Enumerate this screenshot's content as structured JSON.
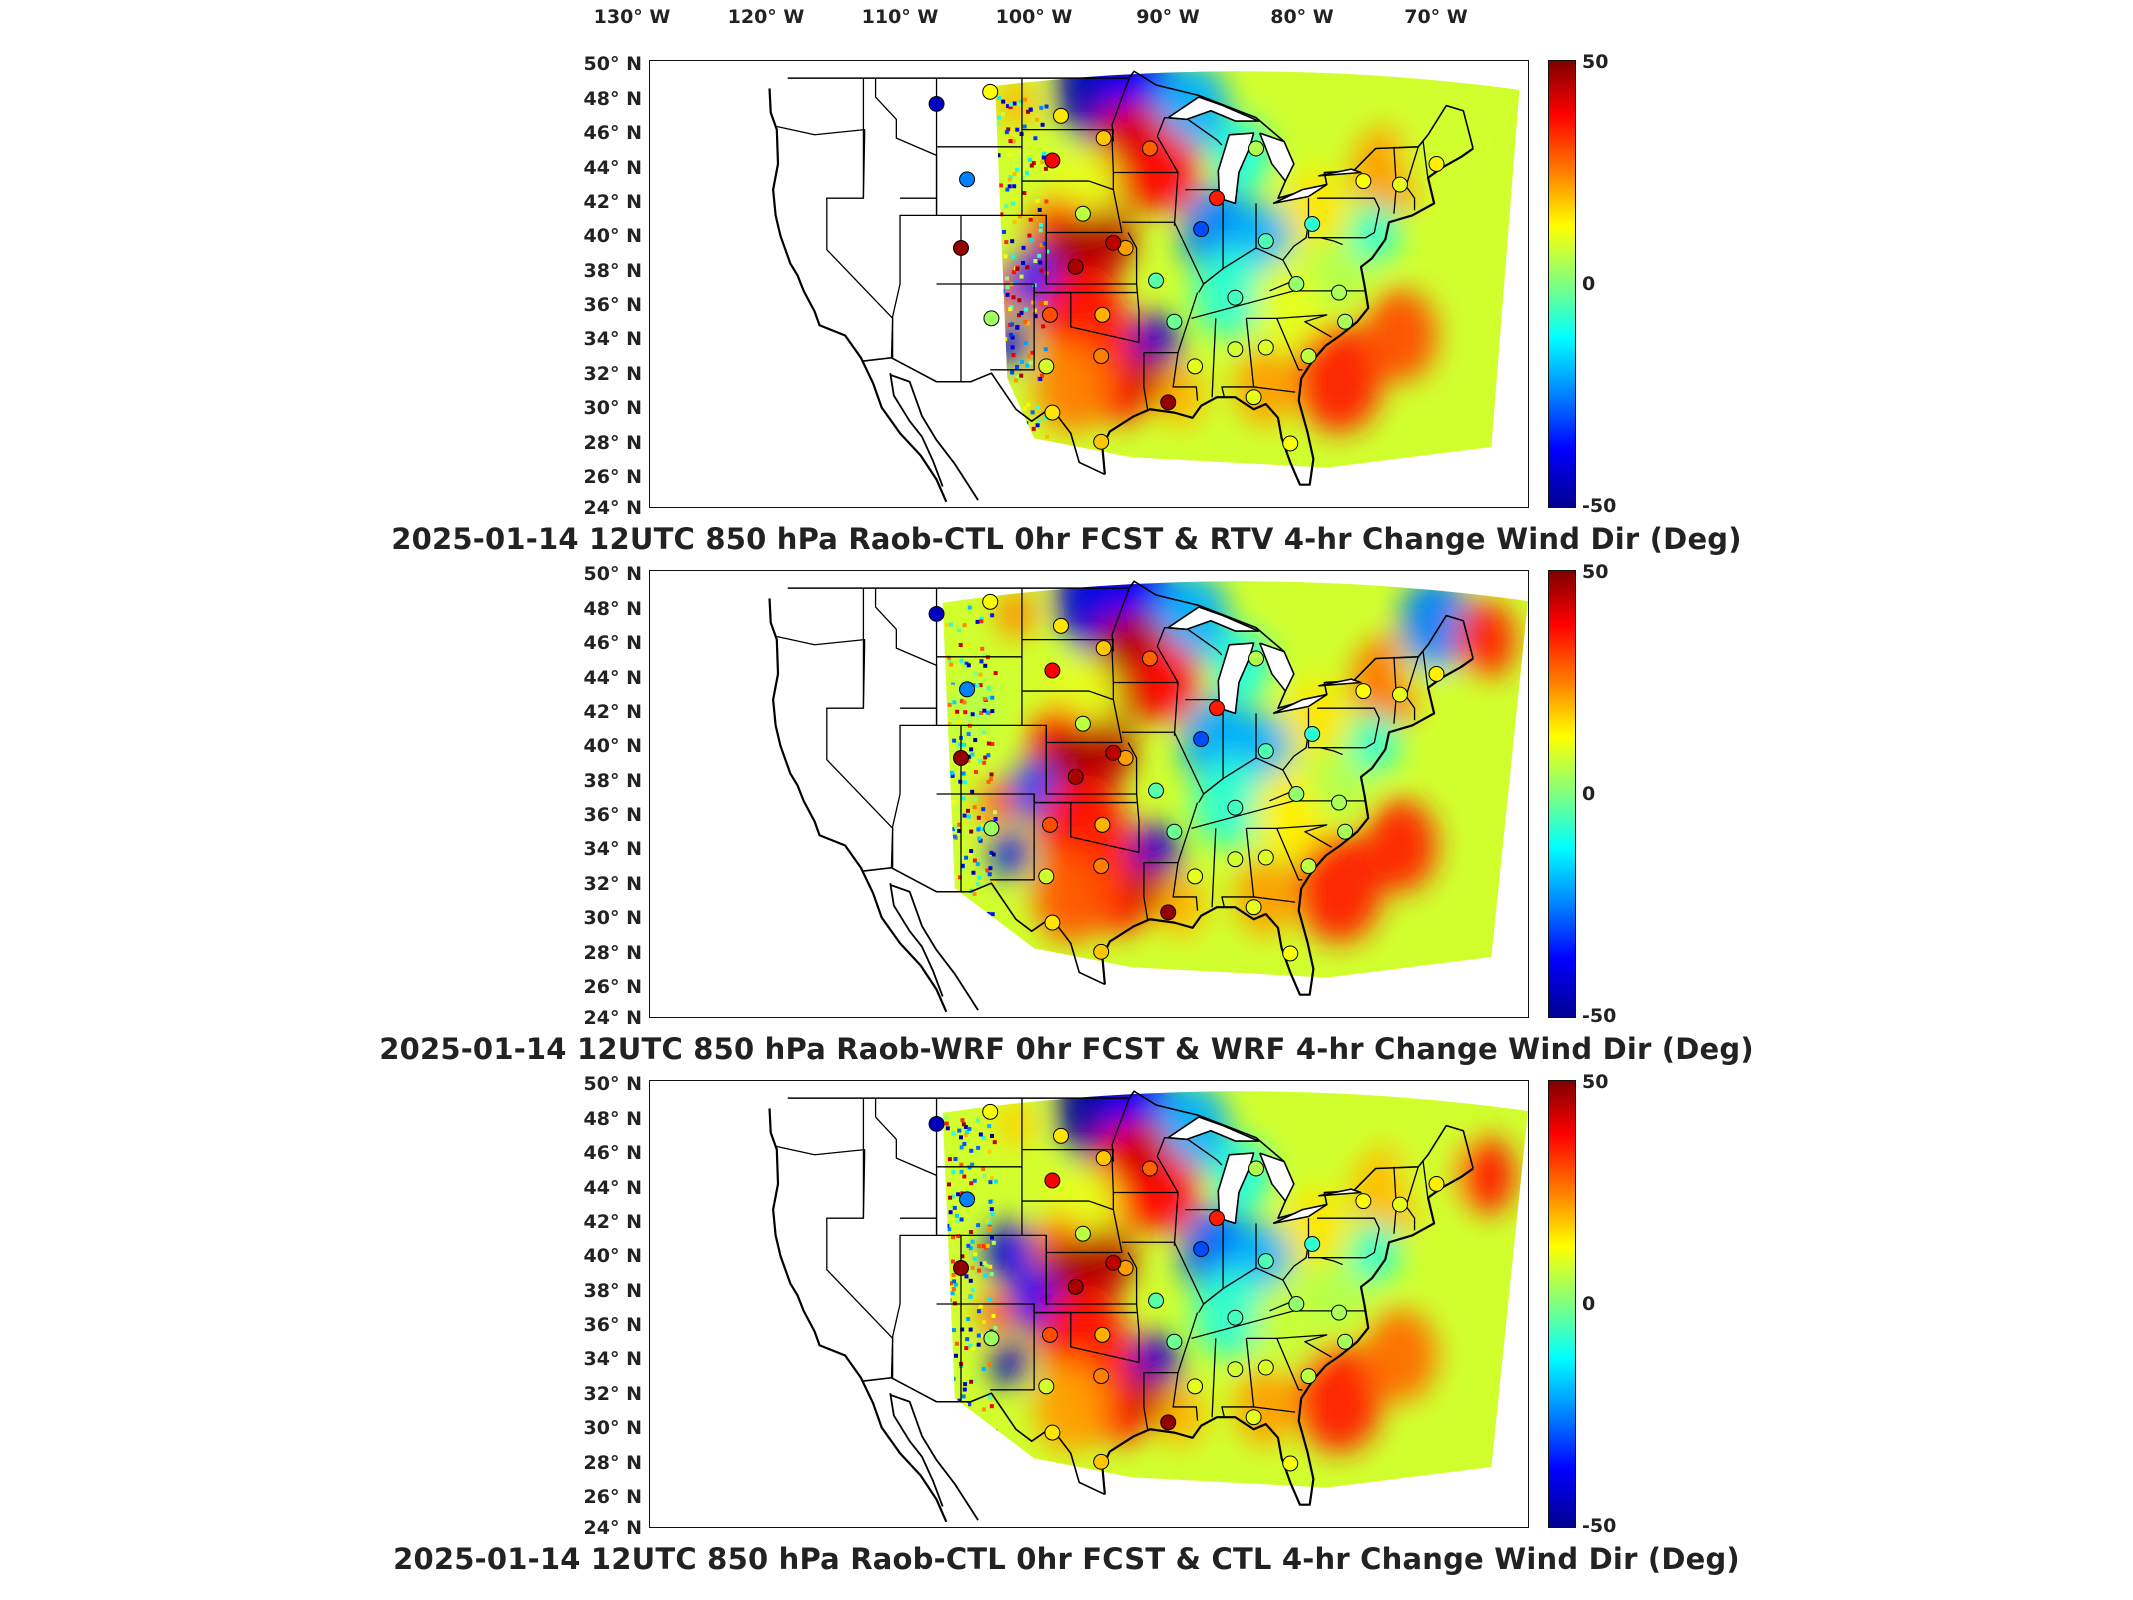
{
  "longitude_labels": [
    "130° W",
    "120° W",
    "110° W",
    "100° W",
    "90° W",
    "80° W",
    "70° W"
  ],
  "latitude_labels": [
    "50° N",
    "48° N",
    "46° N",
    "44° N",
    "42° N",
    "40° N",
    "38° N",
    "36° N",
    "34° N",
    "32° N",
    "30° N",
    "28° N",
    "26° N",
    "24° N"
  ],
  "colorbar": {
    "max_label": "50",
    "mid_label": "0",
    "min_label": "-50",
    "colormap": [
      "#800000",
      "#ff0000",
      "#ff8000",
      "#ffff00",
      "#80ff80",
      "#00ffff",
      "#0080ff",
      "#0000ff",
      "#00008f"
    ]
  },
  "panels": [
    {
      "title": "2025-01-14 12UTC 850 hPa Raob-CTL 0hr FCST & RTV 4-hr Change Wind Dir (Deg)"
    },
    {
      "title": "2025-01-14 12UTC 850 hPa Raob-WRF 0hr FCST & WRF 4-hr Change Wind Dir (Deg)"
    },
    {
      "title": "2025-01-14 12UTC 850 hPa Raob-CTL 0hr FCST & CTL 4-hr Change Wind Dir (Deg)"
    }
  ],
  "stations": [
    {
      "lon": -111.0,
      "lat": 47.5,
      "v": -45
    },
    {
      "lon": -106.6,
      "lat": 48.2,
      "v": 12
    },
    {
      "lon": -100.8,
      "lat": 46.8,
      "v": 15
    },
    {
      "lon": -97.3,
      "lat": 45.5,
      "v": 18
    },
    {
      "lon": -101.5,
      "lat": 44.2,
      "v": 38
    },
    {
      "lon": -108.5,
      "lat": 43.1,
      "v": -25
    },
    {
      "lon": -93.5,
      "lat": 44.9,
      "v": 28
    },
    {
      "lon": -88.0,
      "lat": 42.0,
      "v": 35
    },
    {
      "lon": -84.8,
      "lat": 44.9,
      "v": 5
    },
    {
      "lon": -89.3,
      "lat": 40.2,
      "v": -30
    },
    {
      "lon": -84.0,
      "lat": 39.5,
      "v": -5
    },
    {
      "lon": -80.2,
      "lat": 40.5,
      "v": -8
    },
    {
      "lon": -76.0,
      "lat": 43.0,
      "v": 12
    },
    {
      "lon": -73.0,
      "lat": 42.8,
      "v": 10
    },
    {
      "lon": -70.0,
      "lat": 44.0,
      "v": 14
    },
    {
      "lon": -95.5,
      "lat": 39.1,
      "v": 22
    },
    {
      "lon": -99.0,
      "lat": 41.1,
      "v": 6
    },
    {
      "lon": -109.0,
      "lat": 39.1,
      "v": 48
    },
    {
      "lon": -106.5,
      "lat": 35.0,
      "v": 3
    },
    {
      "lon": -101.7,
      "lat": 35.2,
      "v": 30
    },
    {
      "lon": -97.4,
      "lat": 35.2,
      "v": 20
    },
    {
      "lon": -93.0,
      "lat": 37.2,
      "v": -4
    },
    {
      "lon": -91.5,
      "lat": 34.8,
      "v": -2
    },
    {
      "lon": -86.5,
      "lat": 36.2,
      "v": -6
    },
    {
      "lon": -81.5,
      "lat": 37.0,
      "v": 2
    },
    {
      "lon": -78.0,
      "lat": 36.5,
      "v": 4
    },
    {
      "lon": -97.5,
      "lat": 32.8,
      "v": 25
    },
    {
      "lon": -102.0,
      "lat": 32.2,
      "v": 8
    },
    {
      "lon": -101.5,
      "lat": 29.5,
      "v": 15
    },
    {
      "lon": -97.5,
      "lat": 27.8,
      "v": 18
    },
    {
      "lon": -92.0,
      "lat": 30.1,
      "v": 48
    },
    {
      "lon": -89.8,
      "lat": 32.2,
      "v": 10
    },
    {
      "lon": -86.5,
      "lat": 33.2,
      "v": 8
    },
    {
      "lon": -84.0,
      "lat": 33.3,
      "v": 9
    },
    {
      "lon": -80.5,
      "lat": 32.8,
      "v": 6
    },
    {
      "lon": -77.5,
      "lat": 34.8,
      "v": 4
    },
    {
      "lon": -82.0,
      "lat": 27.7,
      "v": 12
    },
    {
      "lon": -85.0,
      "lat": 30.4,
      "v": 10
    },
    {
      "lon": -96.5,
      "lat": 39.4,
      "v": 44
    },
    {
      "lon": -99.6,
      "lat": 38.0,
      "v": 46
    }
  ]
}
